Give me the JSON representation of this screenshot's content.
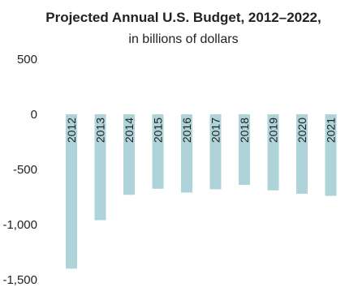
{
  "chart_data": {
    "type": "bar",
    "title": "Projected Annual U.S. Budget, 2012–2022,",
    "subtitle": "in billions of dollars",
    "categories": [
      "2012",
      "2013",
      "2014",
      "2015",
      "2016",
      "2017",
      "2018",
      "2019",
      "2020",
      "2021"
    ],
    "values": [
      -1400,
      -960,
      -730,
      -675,
      -710,
      -680,
      -640,
      -690,
      -720,
      -740
    ],
    "ylim": [
      -1500,
      500
    ],
    "yticks": [
      500,
      0,
      -500,
      -1000,
      -1500
    ],
    "ytick_labels": [
      "500",
      "0",
      "-500",
      "-1,000",
      "-1,500"
    ],
    "bar_color": "#aed4da",
    "grid": false,
    "legend": false
  }
}
